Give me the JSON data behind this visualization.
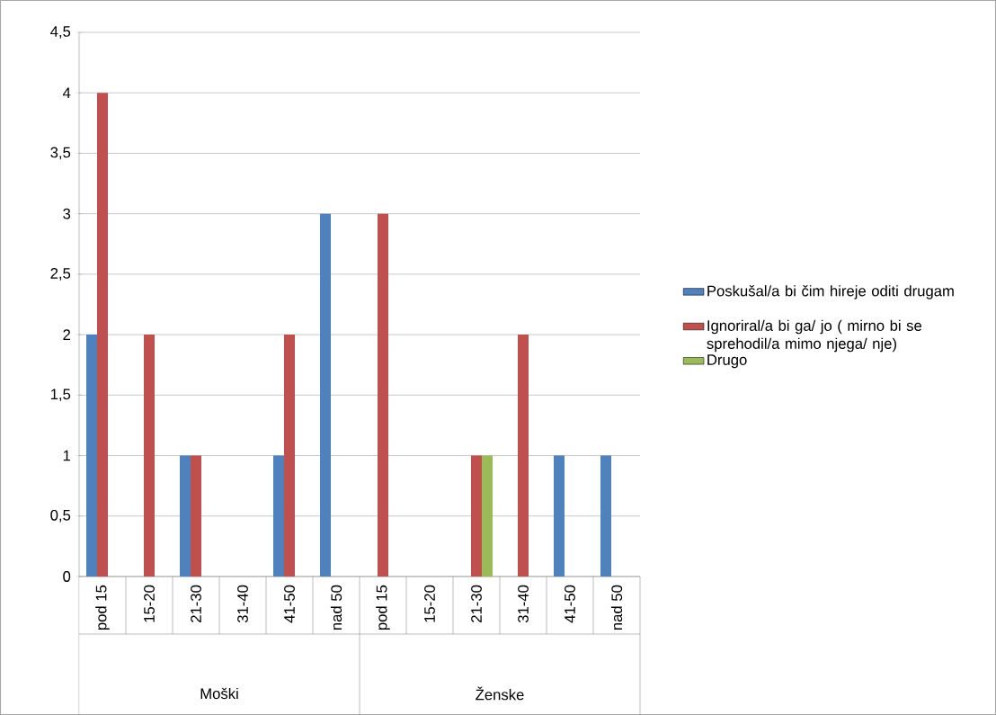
{
  "chart_data": {
    "type": "bar",
    "categories": [
      "pod 15",
      "15-20",
      "21-30",
      "31-40",
      "41-50",
      "nad 50",
      "pod 15",
      "15-20",
      "21-30",
      "31-40",
      "41-50",
      "nad 50"
    ],
    "annotations": [
      "Moški",
      "Ženske"
    ],
    "series": [
      {
        "name": "Poskušal/a bi čim hireje oditi drugam",
        "color": "#4f81bd",
        "values": [
          2,
          0,
          1,
          0,
          1,
          3,
          0,
          0,
          0,
          0,
          1,
          1
        ]
      },
      {
        "name": "Ignoriral/a bi ga/ jo ( mirno bi se sprehodil/a mimo njega/ nje)",
        "color": "#c0504d",
        "values": [
          4,
          2,
          1,
          0,
          2,
          0,
          3,
          0,
          1,
          2,
          0,
          0
        ]
      },
      {
        "name": "Drugo",
        "color": "#9bbb59",
        "values": [
          0,
          0,
          0,
          0,
          0,
          0,
          0,
          0,
          1,
          0,
          0,
          0
        ]
      }
    ],
    "ylim": [
      0,
      4.5
    ],
    "yticks": [
      0,
      {
        "value": 0.5,
        "label": "0,5"
      },
      1,
      {
        "value": 1.5,
        "label": "1,5"
      },
      2,
      {
        "value": 2.5,
        "label": "2,5"
      },
      3,
      {
        "value": 3.5,
        "label": "3,5"
      },
      4,
      {
        "value": 4.5,
        "label": "4,5"
      }
    ],
    "grid": "y",
    "legend": "right"
  }
}
